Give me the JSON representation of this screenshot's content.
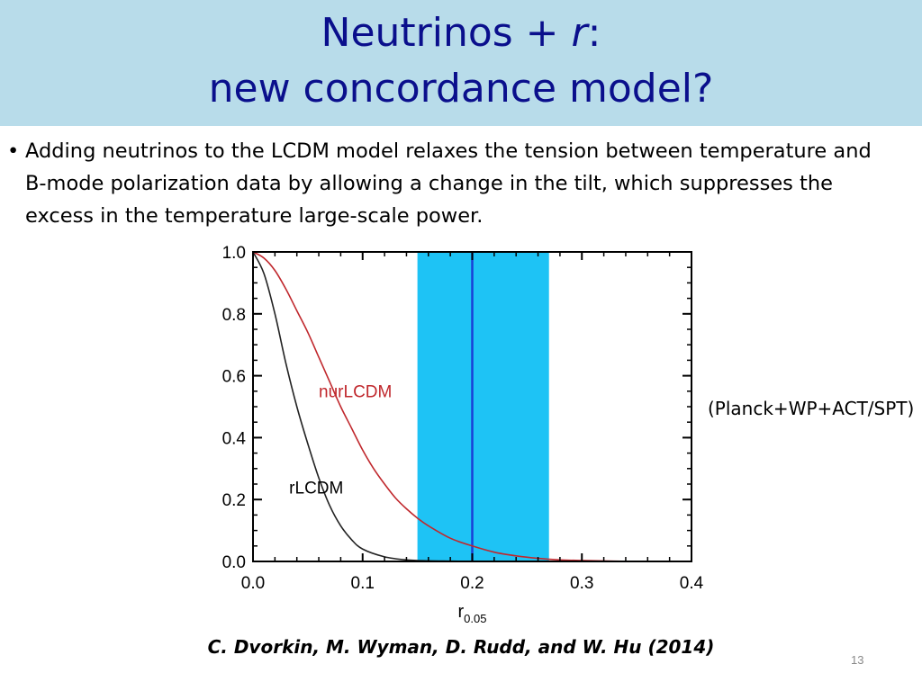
{
  "slide": {
    "title_line1_prefix": "Neutrinos + ",
    "title_line1_italic": "r",
    "title_line1_suffix": ":",
    "title_line2": "new concordance model?",
    "bullet_symbol": "•",
    "bullet_text": "Adding neutrinos to the LCDM model relaxes the tension between temperature and B-mode polarization data by allowing a change in the tilt, which suppresses the excess in the temperature large-scale power.",
    "side_note": "(Planck+WP+ACT/SPT)",
    "citation": "C. Dvorkin, M. Wyman, D. Rudd, and W. Hu (2014)",
    "page_number": "13"
  },
  "chart_data": {
    "type": "line",
    "xlabel": "r",
    "xlabel_subscript": "0.05",
    "ylabel": "",
    "xlim": [
      0.0,
      0.4
    ],
    "ylim": [
      0.0,
      1.0
    ],
    "x_ticks": [
      "0.0",
      "0.1",
      "0.2",
      "0.3",
      "0.4"
    ],
    "y_ticks": [
      "0.0",
      "0.2",
      "0.4",
      "0.6",
      "0.8",
      "1.0"
    ],
    "band": {
      "x_min": 0.15,
      "x_max": 0.27,
      "center": 0.2,
      "color": "#1ec3f5",
      "line_color": "#1a3fd6"
    },
    "series": [
      {
        "name": "rLCDM",
        "color": "#222222",
        "x": [
          0.0,
          0.01,
          0.02,
          0.03,
          0.04,
          0.05,
          0.06,
          0.07,
          0.08,
          0.09,
          0.1,
          0.12,
          0.14,
          0.16,
          0.18,
          0.2
        ],
        "y": [
          1.0,
          0.93,
          0.8,
          0.64,
          0.5,
          0.38,
          0.27,
          0.18,
          0.115,
          0.07,
          0.04,
          0.015,
          0.005,
          0.002,
          0.001,
          0.0
        ]
      },
      {
        "name": "nurLCDM",
        "color": "#c0282d",
        "x": [
          0.0,
          0.01,
          0.02,
          0.03,
          0.04,
          0.05,
          0.06,
          0.07,
          0.08,
          0.09,
          0.1,
          0.11,
          0.12,
          0.13,
          0.14,
          0.15,
          0.16,
          0.18,
          0.2,
          0.22,
          0.24,
          0.26,
          0.28,
          0.3,
          0.33,
          0.35
        ],
        "y": [
          1.0,
          0.98,
          0.94,
          0.88,
          0.81,
          0.74,
          0.66,
          0.58,
          0.5,
          0.43,
          0.36,
          0.3,
          0.25,
          0.205,
          0.17,
          0.14,
          0.115,
          0.075,
          0.05,
          0.03,
          0.018,
          0.01,
          0.005,
          0.003,
          0.001,
          0.0
        ]
      }
    ],
    "series_labels": [
      {
        "text": "nurLCDM",
        "x": 0.06,
        "y": 0.53,
        "color": "#c0282d"
      },
      {
        "text": "rLCDM",
        "x": 0.033,
        "y": 0.22,
        "color": "#000000"
      }
    ]
  }
}
